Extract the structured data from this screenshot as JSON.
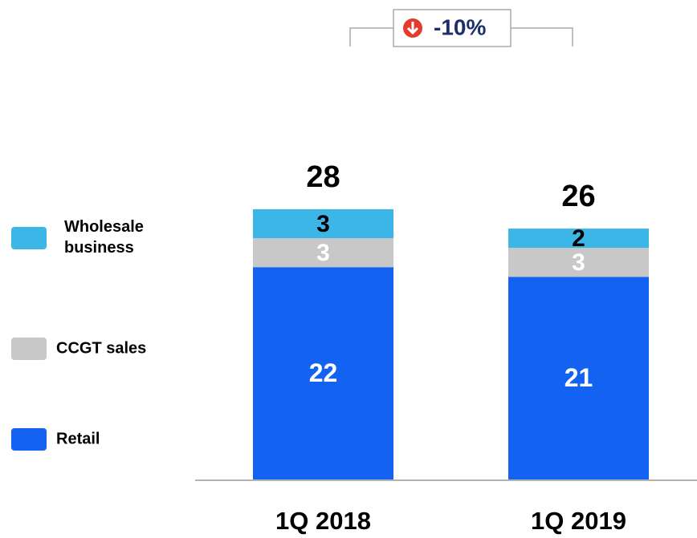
{
  "chart_data": {
    "type": "stacked_bar",
    "categories": [
      "1Q 2018",
      "1Q 2019"
    ],
    "series": [
      {
        "name": "Retail",
        "color": "#1462f2",
        "label_color": "#ffffff",
        "values": [
          22,
          21
        ]
      },
      {
        "name": "CCGT sales",
        "color": "#c8c8c8",
        "label_color": "#ffffff",
        "values": [
          3,
          3
        ]
      },
      {
        "name": "Wholesale business",
        "color": "#3bb6e6",
        "label_color": "#000000",
        "values": [
          3,
          2
        ]
      }
    ],
    "totals": [
      28,
      26
    ],
    "annotation": "-10%"
  }
}
